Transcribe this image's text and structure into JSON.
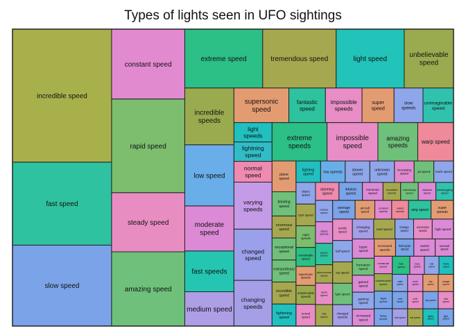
{
  "chart_data": {
    "type": "treemap",
    "title": "Types of lights seen in UFO sightings",
    "tiles": [
      {
        "label": "incredible speed",
        "value": 25,
        "color": "#a8b04c"
      },
      {
        "label": "fast speed",
        "value": 15.6,
        "color": "#2fc2a0"
      },
      {
        "label": "slow speed",
        "value": 15.2,
        "color": "#7aa3e8"
      },
      {
        "label": "constant speed",
        "value": 9.7,
        "color": "#e28ad0"
      },
      {
        "label": "rapid speed",
        "value": 13,
        "color": "#7cbd6e"
      },
      {
        "label": "steady speed",
        "value": 8.2,
        "color": "#e88dc2"
      },
      {
        "label": "amazing speed",
        "value": 10.3,
        "color": "#6fc07a"
      },
      {
        "label": "extreme speed",
        "value": 8.7,
        "color": "#2cbf86"
      },
      {
        "label": "tremendous speed",
        "value": 8.2,
        "color": "#a6a84f"
      },
      {
        "label": "light speed",
        "value": 7.6,
        "color": "#22c3b8"
      },
      {
        "label": "unbelievable speed",
        "value": 5.5,
        "color": "#9aaa4f"
      },
      {
        "label": "incredible speeds",
        "value": 5.3,
        "color": "#9aaa4f"
      },
      {
        "label": "low speed",
        "value": 5.7,
        "color": "#69aee8"
      },
      {
        "label": "moderate speed",
        "value": 4.2,
        "color": "#dc8ad6"
      },
      {
        "label": "fast speeds",
        "value": 3.8,
        "color": "#24c6b2"
      },
      {
        "label": "medium speed",
        "value": 3.2,
        "color": "#ad9ee6"
      },
      {
        "label": "supersonic speed",
        "value": 3.6,
        "color": "#e39c72"
      },
      {
        "label": "fantastic speed",
        "value": 2.4,
        "color": "#2ec29e"
      },
      {
        "label": "impossible speeds",
        "value": 2.4,
        "color": "#e88dc6"
      },
      {
        "label": "super speed",
        "value": 2.1,
        "color": "#e39c72"
      },
      {
        "label": "slow speeds",
        "value": 1.9,
        "color": "#8fa6ea"
      },
      {
        "label": "unimaginable speed",
        "value": 2.0,
        "color": "#31c2ae"
      },
      {
        "label": "light speeds",
        "value": 1.4,
        "color": "#20c0bf"
      },
      {
        "label": "lightning speed",
        "value": 1.4,
        "color": "#30bcc6"
      },
      {
        "label": "normal speed",
        "value": 1.5,
        "color": "#ef8ab0"
      },
      {
        "label": "varying speeds",
        "value": 3.4,
        "color": "#c39be6"
      },
      {
        "label": "changed speed",
        "value": 3.7,
        "color": "#9ba0ea"
      },
      {
        "label": "changing speeds",
        "value": 3.3,
        "color": "#a59fe8"
      },
      {
        "label": "extreme speeds",
        "value": 4.0,
        "color": "#2cbf86"
      },
      {
        "label": "impossible speed",
        "value": 3.7,
        "color": "#e88dc6"
      },
      {
        "label": "amazing speeds",
        "value": 2.9,
        "color": "#6fc07a"
      },
      {
        "label": "warp speed",
        "value": 2.6,
        "color": "#ee8a9a"
      },
      {
        "label": "plane speed",
        "value": 1.4,
        "color": "#e39c72"
      },
      {
        "label": "blinding speed",
        "value": 1.1,
        "color": "#6fc07a"
      },
      {
        "label": "enormous speed",
        "value": 1.0,
        "color": "#a6a84f"
      },
      {
        "label": "exceptional speed",
        "value": 1.0,
        "color": "#6fc07a"
      },
      {
        "label": "extraordinary speed",
        "value": 1.0,
        "color": "#6fc07a"
      },
      {
        "label": "incredible speed",
        "value": 1.0,
        "color": "#a6a84f"
      },
      {
        "label": "lightening speed",
        "value": 1.0,
        "color": "#20c0bf"
      },
      {
        "label": "lighting speed",
        "value": 1.0,
        "color": "#20c0bf"
      },
      {
        "label": "low speeds",
        "value": 1.0,
        "color": "#69aee8"
      },
      {
        "label": "slower speed",
        "value": 1.0,
        "color": "#8fa6ea"
      },
      {
        "label": "unknown speed",
        "value": 1.0,
        "color": "#8fa6ea"
      },
      {
        "label": "increasing speed",
        "value": 0.8,
        "color": "#e28ad0"
      },
      {
        "label": "jet speed",
        "value": 0.8,
        "color": "#6fc07a"
      },
      {
        "label": "mach speed",
        "value": 0.8,
        "color": "#8fa6ea"
      },
      {
        "label": "object speed",
        "value": 0.8,
        "color": "#8fa6ea"
      },
      {
        "label": "quot speed",
        "value": 0.8,
        "color": "#a6a84f"
      },
      {
        "label": "rapid speeds",
        "value": 0.8,
        "color": "#7cbd6e"
      },
      {
        "label": "remarkable speed",
        "value": 0.7,
        "color": "#2cbf86"
      },
      {
        "label": "supersonic speeds",
        "value": 0.7,
        "color": "#e39c72"
      },
      {
        "label": "unbelievable speeds",
        "value": 0.7,
        "color": "#9aaa4f"
      },
      {
        "label": "unreal speed",
        "value": 0.8,
        "color": "#e88dc6"
      },
      {
        "label": "alarming speed",
        "value": 0.8,
        "color": "#ef8ab0"
      },
      {
        "label": "44slow speed",
        "value": 0.8,
        "color": "#7aa3e8"
      },
      {
        "label": "immense speed",
        "value": 0.7,
        "color": "#dc8ad6"
      },
      {
        "label": "incredible speeds",
        "value": 0.6,
        "color": "#a6a84f"
      },
      {
        "label": "individually speed",
        "value": 0.6,
        "color": "#6fc07a"
      },
      {
        "label": "massive speed",
        "value": 0.6,
        "color": "#dc8ad6"
      },
      {
        "label": "mindboggling speed",
        "value": 0.6,
        "color": "#31c2ae"
      },
      {
        "label": "meteor speed",
        "value": 0.7,
        "color": "#8fa6ea"
      },
      {
        "label": "object speeds",
        "value": 0.7,
        "color": "#dc8ad6"
      },
      {
        "label": "paced speed",
        "value": 0.7,
        "color": "#2ec29e"
      },
      {
        "label": "phenomenal speed",
        "value": 0.6,
        "color": "#a6a84f"
      },
      {
        "label": "quick speed",
        "value": 0.7,
        "color": "#e88dc6"
      },
      {
        "label": "rate speed",
        "value": 0.7,
        "color": "#a6a84f"
      },
      {
        "label": "average speed",
        "value": 0.8,
        "color": "#7aa3e8"
      },
      {
        "label": "aircraft speed",
        "value": 0.7,
        "color": "#e39c72"
      },
      {
        "label": "constant speeds",
        "value": 0.6,
        "color": "#e28ad0"
      },
      {
        "label": "varied speeds",
        "value": 0.6,
        "color": "#ee8a9a"
      },
      {
        "label": "amp speed",
        "value": 0.8,
        "color": "#2ec29e"
      },
      {
        "label": "super speeds",
        "value": 0.8,
        "color": "#e39c72"
      },
      {
        "label": "terrific speed",
        "value": 0.8,
        "color": "#e88dc6"
      },
      {
        "label": "ball speed",
        "value": 0.8,
        "color": "#8fa6ea"
      },
      {
        "label": "top speed",
        "value": 0.8,
        "color": "#a6a84f"
      },
      {
        "label": "type speed",
        "value": 0.8,
        "color": "#6fc07a"
      },
      {
        "label": "changed speeds",
        "value": 0.8,
        "color": "#a59fe8"
      },
      {
        "label": "changing speed",
        "value": 0.8,
        "color": "#a59fe8"
      },
      {
        "label": "east speed",
        "value": 0.8,
        "color": "#a6a84f"
      },
      {
        "label": "change speed",
        "value": 0.7,
        "color": "#8fa6ea"
      },
      {
        "label": "excessive speed",
        "value": 0.7,
        "color": "#e88dc6"
      },
      {
        "label": "high speed",
        "value": 0.8,
        "color": "#dc8ad6"
      },
      {
        "label": "hyper speed",
        "value": 0.8,
        "color": "#dc8ad6"
      },
      {
        "label": "formation speed",
        "value": 0.7,
        "color": "#6fc07a"
      },
      {
        "label": "gained speed",
        "value": 0.7,
        "color": "#dc8ad6"
      },
      {
        "label": "gaining speed",
        "value": 0.7,
        "color": "#8fa6ea"
      },
      {
        "label": "increased speed",
        "value": 0.7,
        "color": "#dc8ad6"
      },
      {
        "label": "increased speeds",
        "value": 0.7,
        "color": "#e39c72"
      },
      {
        "label": "helicopter speed",
        "value": 0.6,
        "color": "#7aa3e8"
      },
      {
        "label": "varied speed",
        "value": 0.7,
        "color": "#dc8ad6"
      },
      {
        "label": "unusual speed",
        "value": 0.6,
        "color": "#dc8ad6"
      },
      {
        "label": "unnatural speed",
        "value": 0.6,
        "color": "#e28ad0"
      },
      {
        "label": "unbelievable speed",
        "value": 0.6,
        "color": "#9aaa4f"
      },
      {
        "label": "flight speed",
        "value": 0.6,
        "color": "#7aa3e8"
      },
      {
        "label": "flying speed",
        "value": 0.6,
        "color": "#7aa3e8"
      },
      {
        "label": "fast speed",
        "value": 0.6,
        "color": "#2cbf86"
      },
      {
        "label": "crazy speeds",
        "value": 0.5,
        "color": "#dc8ad6"
      },
      {
        "label": "ball speed",
        "value": 0.5,
        "color": "#8fa6ea"
      },
      {
        "label": "flame speed",
        "value": 0.5,
        "color": "#20c0bf"
      },
      {
        "label": "night speed",
        "value": 0.5,
        "color": "#8fa6ea"
      },
      {
        "label": "note speed",
        "value": 0.5,
        "color": "#7aa3e8"
      },
      {
        "label": "mid speed",
        "value": 0.5,
        "color": "#a59fe8"
      },
      {
        "label": "sonic speed",
        "value": 0.5,
        "color": "#dc8ad6"
      },
      {
        "label": "star speed",
        "value": 0.5,
        "color": "#e39c72"
      },
      {
        "label": "orange speed",
        "value": 0.5,
        "color": "#e39c72"
      },
      {
        "label": "orbit speed",
        "value": 0.5,
        "color": "#e88dc6"
      },
      {
        "label": "sat speed",
        "value": 0.5,
        "color": "#a6a84f"
      },
      {
        "label": "sky speed",
        "value": 0.5,
        "color": "#7aa3e8"
      },
      {
        "label": "ufos speed",
        "value": 0.5,
        "color": "#e88dc6"
      },
      {
        "label": "lights speed",
        "value": 0.5,
        "color": "#20c0bf"
      },
      {
        "label": "light speed",
        "value": 0.5,
        "color": "#7aa3e8"
      }
    ]
  }
}
